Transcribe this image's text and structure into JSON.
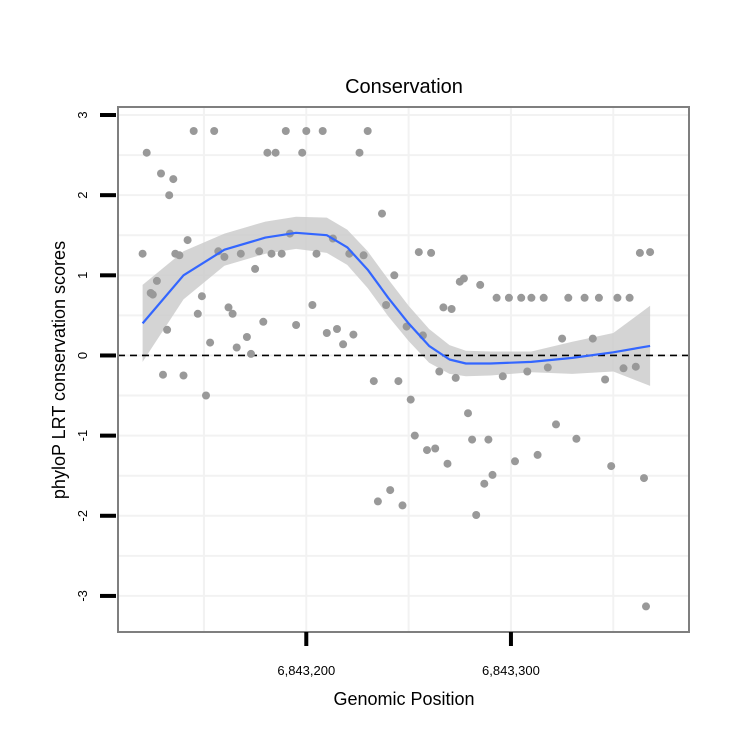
{
  "chart_data": {
    "type": "scatter",
    "title": "Conservation",
    "xlabel": "Genomic Position",
    "ylabel": "phyloP LRT conservation scores",
    "xlim": [
      6843108,
      6843387
    ],
    "ylim": [
      -3.45,
      3.1
    ],
    "x_ticks": [
      6843200,
      6843300
    ],
    "x_tick_labels": [
      "6,843,200",
      "6,843,300"
    ],
    "y_ticks": [
      -3,
      -2,
      -1,
      0,
      1,
      2,
      3
    ],
    "y_tick_labels": [
      "-3",
      "-2",
      "-1",
      "0",
      "1",
      "2",
      "3"
    ],
    "grid": true,
    "reference_line": 0,
    "colors": {
      "points": "#999999",
      "smooth": "#3366ff",
      "band": "#cccccc",
      "panel_border": "#7f7f7f",
      "grid": "#f2f2f2",
      "hline": "#000000"
    },
    "points": [
      [
        6843120,
        1.27
      ],
      [
        6843122,
        2.53
      ],
      [
        6843124,
        0.78
      ],
      [
        6843125,
        0.76
      ],
      [
        6843127,
        0.93
      ],
      [
        6843129,
        2.27
      ],
      [
        6843130,
        -0.24
      ],
      [
        6843132,
        0.32
      ],
      [
        6843133,
        2.0
      ],
      [
        6843135,
        2.2
      ],
      [
        6843136,
        1.27
      ],
      [
        6843138,
        1.25
      ],
      [
        6843140,
        -0.25
      ],
      [
        6843142,
        1.44
      ],
      [
        6843145,
        2.8
      ],
      [
        6843147,
        0.52
      ],
      [
        6843149,
        0.74
      ],
      [
        6843151,
        -0.5
      ],
      [
        6843153,
        0.16
      ],
      [
        6843155,
        2.8
      ],
      [
        6843157,
        1.3
      ],
      [
        6843160,
        1.23
      ],
      [
        6843162,
        0.6
      ],
      [
        6843164,
        0.52
      ],
      [
        6843166,
        0.1
      ],
      [
        6843168,
        1.27
      ],
      [
        6843171,
        0.23
      ],
      [
        6843173,
        0.02
      ],
      [
        6843175,
        1.08
      ],
      [
        6843177,
        1.3
      ],
      [
        6843179,
        0.42
      ],
      [
        6843181,
        2.53
      ],
      [
        6843183,
        1.27
      ],
      [
        6843185,
        2.53
      ],
      [
        6843188,
        1.27
      ],
      [
        6843190,
        2.8
      ],
      [
        6843192,
        1.52
      ],
      [
        6843195,
        0.38
      ],
      [
        6843198,
        2.53
      ],
      [
        6843200,
        2.8
      ],
      [
        6843203,
        0.63
      ],
      [
        6843205,
        1.27
      ],
      [
        6843208,
        2.8
      ],
      [
        6843210,
        0.28
      ],
      [
        6843213,
        1.46
      ],
      [
        6843215,
        0.33
      ],
      [
        6843218,
        0.14
      ],
      [
        6843221,
        1.27
      ],
      [
        6843223,
        0.26
      ],
      [
        6843226,
        2.53
      ],
      [
        6843228,
        1.25
      ],
      [
        6843230,
        2.8
      ],
      [
        6843233,
        -0.32
      ],
      [
        6843235,
        -1.82
      ],
      [
        6843237,
        1.77
      ],
      [
        6843239,
        0.63
      ],
      [
        6843241,
        -1.68
      ],
      [
        6843243,
        1.0
      ],
      [
        6843245,
        -0.32
      ],
      [
        6843247,
        -1.87
      ],
      [
        6843249,
        0.36
      ],
      [
        6843251,
        -0.55
      ],
      [
        6843253,
        -1.0
      ],
      [
        6843255,
        1.29
      ],
      [
        6843257,
        0.25
      ],
      [
        6843259,
        -1.18
      ],
      [
        6843261,
        1.28
      ],
      [
        6843263,
        -1.16
      ],
      [
        6843265,
        -0.2
      ],
      [
        6843267,
        0.6
      ],
      [
        6843269,
        -1.35
      ],
      [
        6843271,
        0.58
      ],
      [
        6843273,
        -0.28
      ],
      [
        6843275,
        0.92
      ],
      [
        6843277,
        0.96
      ],
      [
        6843279,
        -0.72
      ],
      [
        6843281,
        -1.05
      ],
      [
        6843283,
        -1.99
      ],
      [
        6843285,
        0.88
      ],
      [
        6843287,
        -1.6
      ],
      [
        6843289,
        -1.05
      ],
      [
        6843291,
        -1.49
      ],
      [
        6843293,
        0.72
      ],
      [
        6843296,
        -0.26
      ],
      [
        6843299,
        0.72
      ],
      [
        6843302,
        -1.32
      ],
      [
        6843305,
        0.72
      ],
      [
        6843308,
        -0.2
      ],
      [
        6843310,
        0.72
      ],
      [
        6843313,
        -1.24
      ],
      [
        6843316,
        0.72
      ],
      [
        6843318,
        -0.15
      ],
      [
        6843322,
        -0.86
      ],
      [
        6843325,
        0.21
      ],
      [
        6843328,
        0.72
      ],
      [
        6843332,
        -1.04
      ],
      [
        6843336,
        0.72
      ],
      [
        6843340,
        0.21
      ],
      [
        6843343,
        0.72
      ],
      [
        6843346,
        -0.3
      ],
      [
        6843349,
        -1.38
      ],
      [
        6843352,
        0.72
      ],
      [
        6843355,
        -0.16
      ],
      [
        6843358,
        0.72
      ],
      [
        6843361,
        -0.14
      ],
      [
        6843363,
        1.28
      ],
      [
        6843365,
        -1.53
      ],
      [
        6843366,
        -3.13
      ],
      [
        6843368,
        1.29
      ]
    ],
    "smooth_line": [
      [
        6843120,
        0.4
      ],
      [
        6843140,
        1.0
      ],
      [
        6843160,
        1.32
      ],
      [
        6843180,
        1.47
      ],
      [
        6843195,
        1.53
      ],
      [
        6843210,
        1.5
      ],
      [
        6843220,
        1.35
      ],
      [
        6843230,
        1.07
      ],
      [
        6843240,
        0.72
      ],
      [
        6843250,
        0.4
      ],
      [
        6843260,
        0.12
      ],
      [
        6843270,
        -0.05
      ],
      [
        6843278,
        -0.1
      ],
      [
        6843290,
        -0.1
      ],
      [
        6843310,
        -0.08
      ],
      [
        6843330,
        -0.03
      ],
      [
        6843350,
        0.04
      ],
      [
        6843368,
        0.12
      ]
    ],
    "confidence_band": {
      "x": [
        6843120,
        6843140,
        6843160,
        6843180,
        6843195,
        6843210,
        6843220,
        6843230,
        6843240,
        6843250,
        6843260,
        6843270,
        6843278,
        6843290,
        6843310,
        6843330,
        6843350,
        6843368
      ],
      "upper": [
        0.88,
        1.3,
        1.52,
        1.67,
        1.73,
        1.72,
        1.57,
        1.3,
        0.95,
        0.62,
        0.33,
        0.13,
        0.06,
        0.05,
        0.05,
        0.17,
        0.28,
        0.62
      ],
      "lower": [
        -0.08,
        0.7,
        1.12,
        1.27,
        1.33,
        1.28,
        1.13,
        0.84,
        0.49,
        0.18,
        -0.09,
        -0.23,
        -0.26,
        -0.25,
        -0.21,
        -0.23,
        -0.2,
        -0.38
      ]
    }
  }
}
